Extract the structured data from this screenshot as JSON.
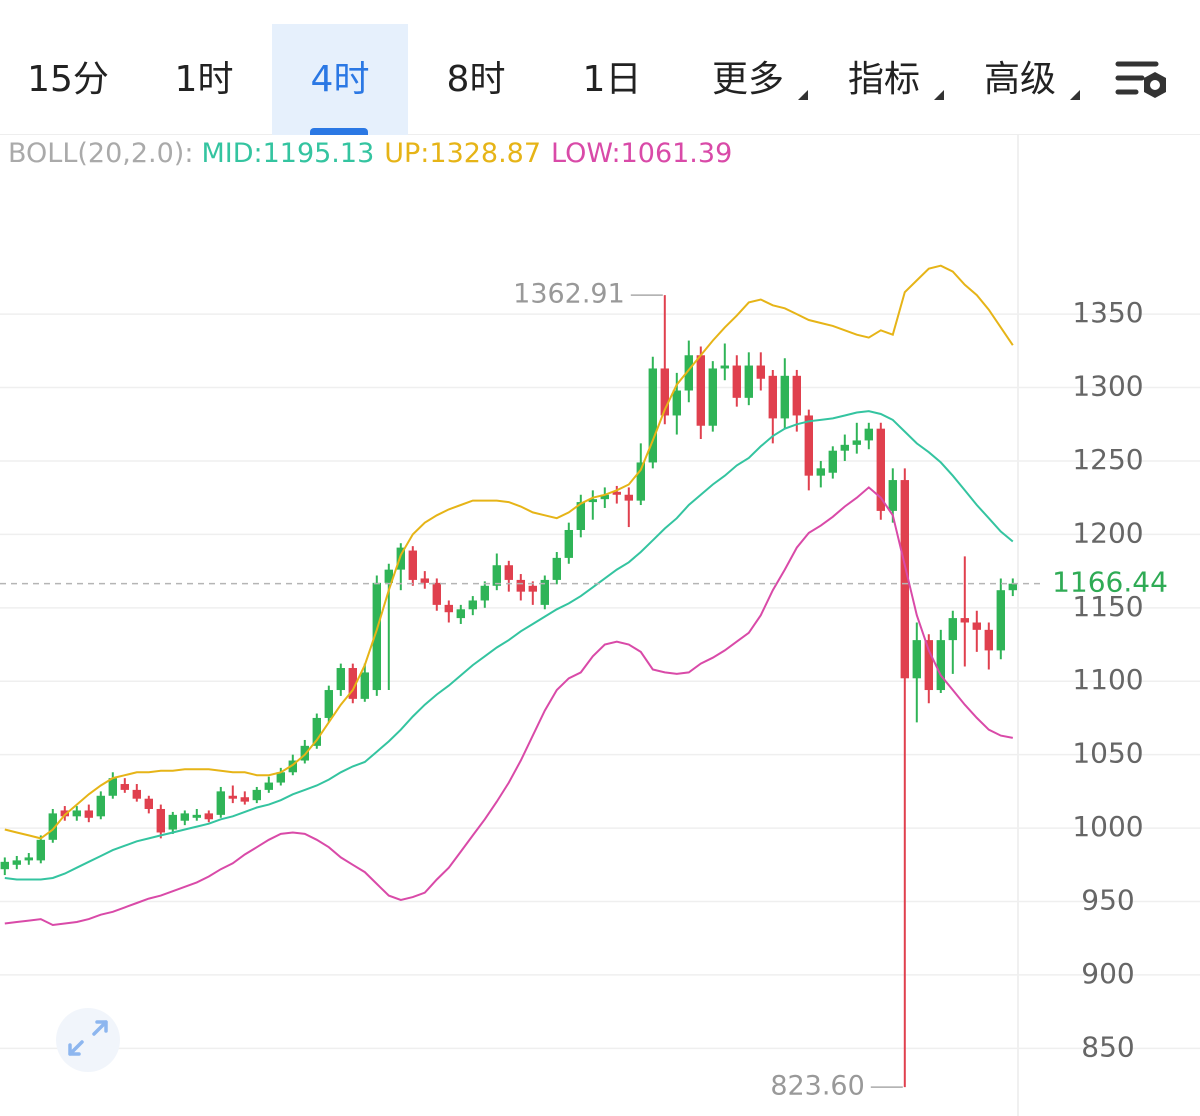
{
  "tabs": [
    {
      "label": "15分",
      "dropdown": false
    },
    {
      "label": "1时",
      "dropdown": false
    },
    {
      "label": "4时",
      "dropdown": false
    },
    {
      "label": "8时",
      "dropdown": false
    },
    {
      "label": "1日",
      "dropdown": false
    },
    {
      "label": "更多",
      "dropdown": true
    },
    {
      "label": "指标",
      "dropdown": true
    },
    {
      "label": "高级",
      "dropdown": true
    }
  ],
  "active_tab": 2,
  "chart_data": {
    "type": "candlestick",
    "indicator": "BOLL(20,2.0):",
    "up_color": "#2fb457",
    "down_color": "#e0404e",
    "open": [
      972,
      975,
      978,
      978,
      992,
      1012,
      1008,
      1012,
      1008,
      1022,
      1030,
      1026,
      1020,
      1013,
      999,
      1005,
      1007,
      1010,
      1009,
      1022,
      1021,
      1019,
      1026,
      1031,
      1038,
      1046,
      1056,
      1075,
      1094,
      1109,
      1088,
      1094,
      1167,
      1176,
      1189,
      1170,
      1167,
      1152,
      1143,
      1149,
      1155,
      1165,
      1179,
      1169,
      1165,
      1152,
      1169,
      1184,
      1203,
      1222,
      1224,
      1229,
      1227,
      1223,
      1249,
      1313,
      1281,
      1298,
      1322,
      1274,
      1313,
      1315,
      1293,
      1315,
      1308,
      1279,
      1308,
      1281,
      1240,
      1242,
      1257,
      1261,
      1264,
      1272,
      1216,
      1237,
      1102,
      1128,
      1094,
      1128,
      1143,
      1140,
      1135,
      1121,
      1162
    ],
    "high": [
      980,
      981,
      983,
      995,
      1013,
      1015,
      1015,
      1016,
      1025,
      1038,
      1034,
      1030,
      1022,
      1016,
      1011,
      1012,
      1013,
      1012,
      1028,
      1029,
      1025,
      1028,
      1035,
      1041,
      1050,
      1060,
      1078,
      1097,
      1112,
      1112,
      1112,
      1172,
      1180,
      1194,
      1192,
      1175,
      1170,
      1155,
      1152,
      1158,
      1168,
      1187,
      1182,
      1173,
      1168,
      1172,
      1188,
      1208,
      1227,
      1230,
      1232,
      1233,
      1232,
      1262,
      1321,
      1362.91,
      1310,
      1332,
      1328,
      1318,
      1330,
      1322,
      1324,
      1324,
      1312,
      1320,
      1312,
      1285,
      1250,
      1260,
      1268,
      1276,
      1276,
      1276,
      1245,
      1245,
      1140,
      1132,
      1135,
      1148,
      1185,
      1148,
      1140,
      1170,
      1170
    ],
    "low": [
      968,
      972,
      975,
      976,
      990,
      1005,
      1005,
      1004,
      1006,
      1020,
      1024,
      1018,
      1010,
      993,
      996,
      1002,
      1005,
      1004,
      1007,
      1017,
      1016,
      1017,
      1024,
      1029,
      1036,
      1044,
      1054,
      1072,
      1090,
      1085,
      1086,
      1090,
      1094,
      1162,
      1165,
      1163,
      1148,
      1140,
      1139,
      1145,
      1150,
      1162,
      1161,
      1155,
      1152,
      1149,
      1166,
      1180,
      1198,
      1210,
      1218,
      1221,
      1205,
      1220,
      1245,
      1275,
      1268,
      1290,
      1265,
      1270,
      1305,
      1287,
      1288,
      1298,
      1262,
      1272,
      1270,
      1230,
      1232,
      1238,
      1250,
      1255,
      1258,
      1210,
      1208,
      823.6,
      1072,
      1085,
      1092,
      1105,
      1110,
      1120,
      1108,
      1115,
      1158
    ],
    "close": [
      977,
      978,
      980,
      992,
      1010,
      1008,
      1012,
      1007,
      1022,
      1034,
      1026,
      1020,
      1013,
      997,
      1009,
      1010,
      1009,
      1006,
      1025,
      1020,
      1018,
      1026,
      1031,
      1038,
      1046,
      1056,
      1075,
      1094,
      1109,
      1088,
      1106,
      1167,
      1176,
      1191,
      1169,
      1167,
      1152,
      1147,
      1149,
      1155,
      1165,
      1179,
      1169,
      1161,
      1161,
      1169,
      1184,
      1203,
      1222,
      1224,
      1227,
      1227,
      1223,
      1249,
      1313,
      1281,
      1298,
      1322,
      1274,
      1313,
      1315,
      1293,
      1315,
      1306,
      1279,
      1308,
      1281,
      1240,
      1245,
      1257,
      1261,
      1264,
      1272,
      1216,
      1237,
      1102,
      1128,
      1094,
      1128,
      1143,
      1140,
      1135,
      1121,
      1162,
      1166.44
    ],
    "bands": [
      {
        "name": "MID:",
        "color": "#34c4a0",
        "values": [
          966,
          965,
          965,
          965,
          966,
          969,
          973,
          977,
          981,
          985,
          988,
          991,
          993,
          995,
          997,
          999,
          1001,
          1003,
          1006,
          1008,
          1011,
          1014,
          1016,
          1019,
          1023,
          1026,
          1029,
          1033,
          1038,
          1042,
          1045,
          1052,
          1059,
          1067,
          1076,
          1084,
          1091,
          1097,
          1104,
          1111,
          1117,
          1123,
          1128,
          1134,
          1139,
          1144,
          1149,
          1153,
          1158,
          1164,
          1170,
          1176,
          1181,
          1188,
          1196,
          1204,
          1211,
          1220,
          1227,
          1234,
          1240,
          1247,
          1252,
          1260,
          1267,
          1272,
          1275,
          1277,
          1278,
          1279,
          1281,
          1283,
          1284,
          1282,
          1278,
          1270,
          1262,
          1256,
          1249,
          1240,
          1230,
          1220,
          1211,
          1202,
          1195.13
        ]
      },
      {
        "name": "UP:",
        "color": "#e6b417",
        "values": [
          999,
          997,
          995,
          993,
          999,
          1009,
          1016,
          1023,
          1029,
          1034,
          1036,
          1038,
          1038,
          1039,
          1039,
          1040,
          1040,
          1040,
          1039,
          1038,
          1038,
          1036,
          1036,
          1038,
          1043,
          1050,
          1060,
          1072,
          1084,
          1094,
          1111,
          1135,
          1162,
          1186,
          1200,
          1208,
          1213,
          1217,
          1220,
          1223,
          1223,
          1223,
          1222,
          1219,
          1215,
          1213,
          1211,
          1215,
          1221,
          1225,
          1227,
          1230,
          1234,
          1244,
          1264,
          1285,
          1302,
          1312,
          1322,
          1332,
          1341,
          1349,
          1358,
          1360,
          1356,
          1354,
          1350,
          1346,
          1344,
          1342,
          1339,
          1336,
          1334,
          1339,
          1336,
          1365,
          1373,
          1381,
          1383,
          1379,
          1370,
          1363,
          1353,
          1341,
          1328.87
        ]
      },
      {
        "name": "LOW:",
        "color": "#d94aa8",
        "values": [
          935,
          936,
          937,
          938,
          934,
          935,
          936,
          938,
          941,
          943,
          946,
          949,
          952,
          954,
          957,
          960,
          963,
          967,
          972,
          976,
          982,
          987,
          992,
          996,
          997,
          996,
          992,
          987,
          980,
          975,
          970,
          962,
          954,
          951,
          953,
          956,
          965,
          973,
          984,
          995,
          1006,
          1018,
          1031,
          1046,
          1063,
          1080,
          1094,
          1102,
          1106,
          1117,
          1125,
          1127,
          1125,
          1120,
          1108,
          1106,
          1105,
          1106,
          1112,
          1116,
          1121,
          1127,
          1133,
          1145,
          1162,
          1176,
          1191,
          1201,
          1206,
          1212,
          1219,
          1225,
          1232,
          1225,
          1213,
          1179,
          1145,
          1121,
          1104,
          1094,
          1084,
          1075,
          1067,
          1063,
          1061.39
        ]
      }
    ],
    "ylim": [
      808,
      1472
    ],
    "yticks": [
      850,
      900,
      950,
      1000,
      1050,
      1100,
      1150,
      1200,
      1250,
      1300,
      1350
    ],
    "grid": true,
    "last_price": 1166.44,
    "max_marker": 1362.91,
    "min_marker": {
      "value": 823.6,
      "label": "823.60"
    }
  }
}
